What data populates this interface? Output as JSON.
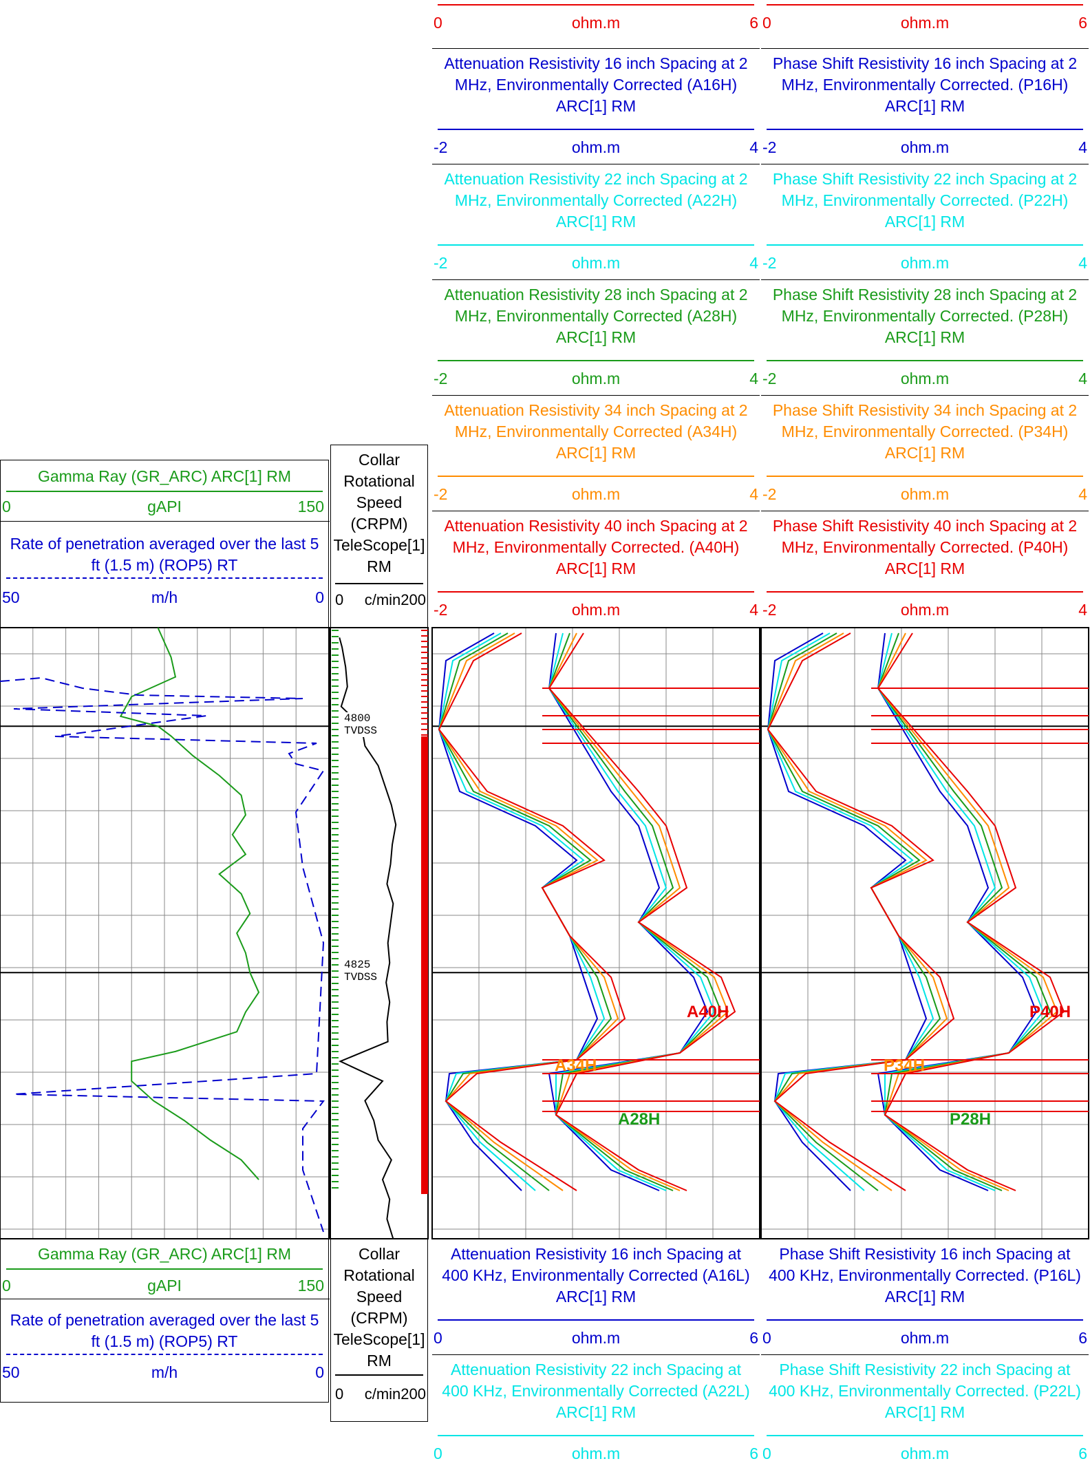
{
  "colors": {
    "blue": "#0000cc",
    "cyan": "#00e5e5",
    "green": "#1a9b1a",
    "orange": "#ff8c00",
    "red": "#e80000",
    "black": "#000000",
    "grid": "#888888"
  },
  "track1_header": {
    "gr_title": "Gamma Ray (GR_ARC) ARC[1] RM",
    "gr_min": "0",
    "gr_unit": "gAPI",
    "gr_max": "150",
    "rop_title": "Rate of penetration averaged over the last 5 ft (1.5 m) (ROP5) RT",
    "rop_min": "50",
    "rop_unit": "m/h",
    "rop_max": "0"
  },
  "track2_header": {
    "title": "Collar Rotational Speed (CRPM) TeleScope[1] RM",
    "min": "0",
    "unit": "c/min",
    "max": "200"
  },
  "top_partial_scales": {
    "atten": {
      "min": "0",
      "unit": "ohm.m",
      "max": "6"
    },
    "phase": {
      "min": "0",
      "unit": "ohm.m",
      "max": "6"
    }
  },
  "atten_headers": [
    {
      "title": "Attenuation Resistivity 16 inch Spacing at 2 MHz, Environmentally Corrected (A16H) ARC[1] RM",
      "min": "-2",
      "unit": "ohm.m",
      "max": "4",
      "color": "blue"
    },
    {
      "title": "Attenuation Resistivity 22 inch Spacing at 2 MHz, Environmentally Corrected (A22H) ARC[1] RM",
      "min": "-2",
      "unit": "ohm.m",
      "max": "4",
      "color": "cyan"
    },
    {
      "title": "Attenuation Resistivity 28 inch Spacing at 2 MHz, Environmentally Corrected (A28H) ARC[1] RM",
      "min": "-2",
      "unit": "ohm.m",
      "max": "4",
      "color": "green"
    },
    {
      "title": "Attenuation Resistivity 34 inch Spacing at 2 MHz, Environmentally Corrected (A34H) ARC[1] RM",
      "min": "-2",
      "unit": "ohm.m",
      "max": "4",
      "color": "orange"
    },
    {
      "title": "Attenuation Resistivity 40 inch Spacing at 2 MHz, Environmentally Corrected. (A40H) ARC[1] RM",
      "min": "-2",
      "unit": "ohm.m",
      "max": "4",
      "color": "red"
    }
  ],
  "phase_headers": [
    {
      "title": "Phase Shift Resistivity 16 inch Spacing at 2 MHz, Environmentally Corrected. (P16H) ARC[1] RM",
      "min": "-2",
      "unit": "ohm.m",
      "max": "4",
      "color": "blue"
    },
    {
      "title": "Phase Shift Resistivity 22 inch Spacing at 2 MHz, Environmentally Corrected. (P22H) ARC[1] RM",
      "min": "-2",
      "unit": "ohm.m",
      "max": "4",
      "color": "cyan"
    },
    {
      "title": "Phase Shift Resistivity 28 inch Spacing at 2 MHz, Environmentally Corrected. (P28H) ARC[1] RM",
      "min": "-2",
      "unit": "ohm.m",
      "max": "4",
      "color": "green"
    },
    {
      "title": "Phase Shift Resistivity 34 inch Spacing at 2 MHz, Environmentally Corrected. (P34H) ARC[1] RM",
      "min": "-2",
      "unit": "ohm.m",
      "max": "4",
      "color": "orange"
    },
    {
      "title": "Phase Shift Resistivity 40 inch Spacing at 2 MHz, Environmentally Corrected. (P40H) ARC[1] RM",
      "min": "-2",
      "unit": "ohm.m",
      "max": "4",
      "color": "red"
    }
  ],
  "bottom_atten_headers": [
    {
      "title": "Attenuation Resistivity 16 inch Spacing at 400 KHz, Environmentally Corrected (A16L) ARC[1] RM",
      "min": "0",
      "unit": "ohm.m",
      "max": "6",
      "color": "blue"
    },
    {
      "title": "Attenuation Resistivity 22 inch Spacing at 400 KHz, Environmentally Corrected (A22L) ARC[1] RM",
      "min": "0",
      "unit": "ohm.m",
      "max": "6",
      "color": "cyan"
    }
  ],
  "bottom_phase_headers": [
    {
      "title": "Phase Shift Resistivity 16 inch Spacing at 400 KHz, Environmentally Corrected. (P16L) ARC[1] RM",
      "min": "0",
      "unit": "ohm.m",
      "max": "6",
      "color": "blue"
    },
    {
      "title": "Phase Shift Resistivity 22 inch Spacing at 400 KHz, Environmentally Corrected. (P22L) ARC[1] RM",
      "min": "0",
      "unit": "ohm.m",
      "max": "6",
      "color": "cyan"
    }
  ],
  "depth_labels": [
    {
      "depth": "4800",
      "unit": "TVDSS"
    },
    {
      "depth": "4825",
      "unit": "TVDSS"
    }
  ],
  "curve_labels": {
    "atten": [
      {
        "text": "A40H",
        "color": "red"
      },
      {
        "text": "A34H",
        "color": "orange"
      },
      {
        "text": "A28H",
        "color": "green"
      }
    ],
    "phase": [
      {
        "text": "P40H",
        "color": "red"
      },
      {
        "text": "P34H",
        "color": "orange"
      },
      {
        "text": "P28H",
        "color": "green"
      }
    ]
  },
  "chart_data": {
    "type": "line",
    "depth_range_tvdss": [
      4790,
      4852
    ],
    "gamma_ray": {
      "unit": "gAPI",
      "range": [
        0,
        150
      ],
      "depth": [
        4790,
        4793,
        4795,
        4797,
        4799,
        4800,
        4801,
        4803,
        4805,
        4807,
        4809,
        4811,
        4813,
        4815,
        4817,
        4819,
        4821,
        4823,
        4825,
        4827,
        4829,
        4831,
        4833,
        4834,
        4836,
        4838,
        4840,
        4842,
        4844,
        4846
      ],
      "values": [
        72,
        78,
        80,
        60,
        55,
        72,
        78,
        88,
        100,
        110,
        112,
        106,
        112,
        100,
        110,
        114,
        108,
        112,
        114,
        118,
        112,
        108,
        80,
        60,
        60,
        70,
        84,
        96,
        110,
        118
      ]
    },
    "crpm": {
      "unit": "c/min",
      "range": [
        0,
        200
      ],
      "depth": [
        4791,
        4792,
        4794,
        4796,
        4798,
        4800,
        4802,
        4804,
        4806,
        4808,
        4810,
        4812,
        4814,
        4816,
        4818,
        4820,
        4822,
        4824,
        4826,
        4828,
        4830,
        4832,
        4834,
        4836,
        4838,
        4840,
        4842,
        4844,
        4846,
        4848,
        4850,
        4852
      ],
      "values": [
        2,
        8,
        16,
        20,
        6,
        52,
        60,
        90,
        105,
        120,
        130,
        122,
        118,
        110,
        124,
        118,
        112,
        116,
        108,
        116,
        110,
        112,
        4,
        100,
        60,
        80,
        90,
        120,
        100,
        116,
        110,
        124
      ]
    }
  }
}
